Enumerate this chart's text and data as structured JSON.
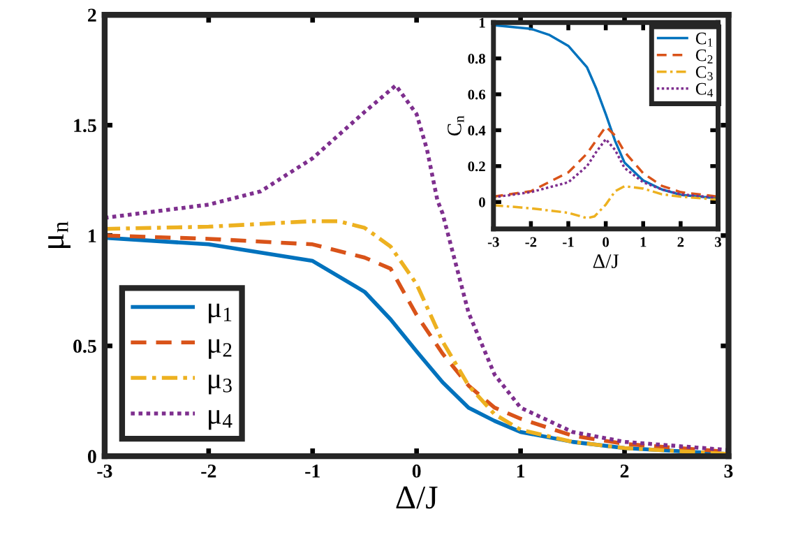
{
  "chart_data": [
    {
      "type": "line",
      "xlabel": "Δ/J",
      "ylabel": "μ$_{n}$",
      "xlim": [
        -3,
        3
      ],
      "ylim": [
        0,
        2
      ],
      "xticks": [
        -3,
        -2,
        -1,
        0,
        1,
        2,
        3
      ],
      "yticks": [
        0,
        0.5,
        1,
        1.5,
        2
      ],
      "grid": false,
      "legend": "lower left",
      "marker": "none",
      "series": [
        {
          "name": "μ$_{1}$",
          "color": "#0072bd",
          "line_style": "solid",
          "x": [
            -3,
            -2,
            -1,
            -0.5,
            -0.25,
            0,
            0.25,
            0.5,
            0.75,
            1,
            1.5,
            2,
            3
          ],
          "values": [
            0.99,
            0.96,
            0.885,
            0.745,
            0.62,
            0.475,
            0.335,
            0.22,
            0.16,
            0.11,
            0.065,
            0.037,
            0.01
          ]
        },
        {
          "name": "μ$_{2}$",
          "color": "#d95319",
          "line_style": "dashed",
          "x": [
            -3,
            -2,
            -1,
            -0.5,
            -0.25,
            0,
            0.25,
            0.5,
            0.75,
            1,
            1.5,
            2,
            3
          ],
          "values": [
            1.0,
            0.985,
            0.96,
            0.9,
            0.85,
            0.64,
            0.465,
            0.32,
            0.22,
            0.17,
            0.093,
            0.056,
            0.02
          ]
        },
        {
          "name": "μ$_{3}$",
          "color": "#edb120",
          "line_style": "dashdot",
          "x": [
            -3,
            -2,
            -1,
            -0.75,
            -0.5,
            -0.25,
            0,
            0.25,
            0.5,
            0.75,
            1,
            1.5,
            2,
            3
          ],
          "values": [
            1.03,
            1.04,
            1.065,
            1.065,
            1.035,
            0.95,
            0.78,
            0.52,
            0.32,
            0.19,
            0.12,
            0.065,
            0.037,
            0.01
          ]
        },
        {
          "name": "μ$_{4}$",
          "color": "#7e2f8e",
          "line_style": "dotted",
          "x": [
            -3,
            -2,
            -1.5,
            -1,
            -0.5,
            -0.2,
            0,
            0.1,
            0.2,
            0.25,
            0.5,
            0.75,
            1,
            1.5,
            2,
            3
          ],
          "values": [
            1.08,
            1.14,
            1.2,
            1.35,
            1.56,
            1.68,
            1.55,
            1.39,
            1.16,
            1.1,
            0.65,
            0.37,
            0.22,
            0.11,
            0.065,
            0.028
          ]
        }
      ]
    },
    {
      "type": "line",
      "xlabel": "Δ/J",
      "ylabel": "C$_{n}$",
      "xlim": [
        -3,
        3
      ],
      "ylim": [
        -0.15,
        1
      ],
      "xticks": [
        -3,
        -2,
        -1,
        0,
        1,
        2,
        3
      ],
      "yticks": [
        0,
        0.2,
        0.4,
        0.6,
        0.8,
        1
      ],
      "grid": false,
      "legend": "top right",
      "marker": "none",
      "series": [
        {
          "name": "C$_{1}$",
          "color": "#0072bd",
          "line_style": "solid",
          "x": [
            -3,
            -2,
            -1.5,
            -1,
            -0.5,
            -0.25,
            0,
            0.25,
            0.5,
            1,
            1.5,
            2,
            3
          ],
          "values": [
            0.985,
            0.965,
            0.93,
            0.87,
            0.75,
            0.63,
            0.49,
            0.34,
            0.22,
            0.12,
            0.07,
            0.04,
            0.02
          ]
        },
        {
          "name": "C$_{2}$",
          "color": "#d95319",
          "line_style": "dashed",
          "x": [
            -3,
            -2,
            -1,
            -0.5,
            0,
            0.25,
            0.5,
            1,
            1.5,
            2,
            3
          ],
          "values": [
            0.03,
            0.06,
            0.165,
            0.27,
            0.42,
            0.37,
            0.28,
            0.16,
            0.09,
            0.055,
            0.03
          ]
        },
        {
          "name": "C$_{3}$",
          "color": "#edb120",
          "line_style": "dashdot",
          "x": [
            -3,
            -2,
            -1,
            -0.5,
            -0.3,
            0,
            0.25,
            0.5,
            1,
            1.5,
            2,
            3
          ],
          "values": [
            -0.018,
            -0.035,
            -0.06,
            -0.09,
            -0.08,
            -0.015,
            0.06,
            0.088,
            0.075,
            0.043,
            0.03,
            0.013
          ]
        },
        {
          "name": "C$_{4}$",
          "color": "#7e2f8e",
          "line_style": "dotted",
          "x": [
            -3,
            -2,
            -1,
            -0.5,
            -0.25,
            0,
            0.25,
            0.5,
            1,
            1.5,
            2,
            3
          ],
          "values": [
            0.026,
            0.055,
            0.11,
            0.2,
            0.28,
            0.35,
            0.29,
            0.19,
            0.11,
            0.07,
            0.043,
            0.023
          ]
        }
      ]
    }
  ]
}
